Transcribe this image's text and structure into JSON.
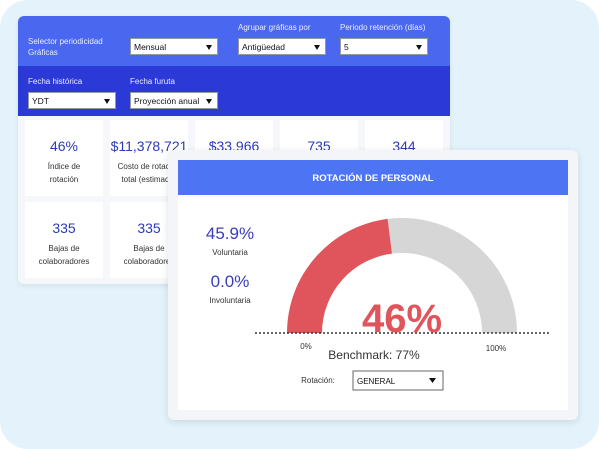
{
  "filters": [
    {
      "label": "Selector periodicidad Gráficas",
      "value": "Mensual"
    },
    {
      "label": "Agrupar gráficas por",
      "value": "Antigüedad"
    },
    {
      "label": "Periodo retención (días)",
      "value": "5"
    },
    {
      "label": "Fecha histórica",
      "value": "YDT"
    },
    {
      "label": "Fecha furuta",
      "value": "Proyección anual"
    }
  ],
  "cards": [
    {
      "value": "46%",
      "label": "Índice de rotación"
    },
    {
      "value": "$11,378,721",
      "label": "Costo de rotación total (estimado)"
    },
    {
      "value": "$33.966"
    },
    {
      "value": "735"
    },
    {
      "value": "344"
    },
    {
      "value": "335",
      "label": "Bajas de colaboradores"
    },
    {
      "value": "335",
      "label": "Bajas de colaboradores"
    }
  ],
  "panel": {
    "title": "ROTACIÓN DE PERSONAL",
    "stats": [
      {
        "value": "45.9%",
        "label": "Voluntaria"
      },
      {
        "value": "0.0%",
        "label": "Involuntaria"
      }
    ],
    "gauge": {
      "value": 46,
      "value_label": "46%",
      "min": {
        "value": 0,
        "label": "0%"
      },
      "max": {
        "value": 100,
        "label": "100%"
      }
    },
    "benchmark": "Benchmark: 77%",
    "selector": {
      "label": "Rotación:",
      "value": "GENERAL"
    }
  }
}
